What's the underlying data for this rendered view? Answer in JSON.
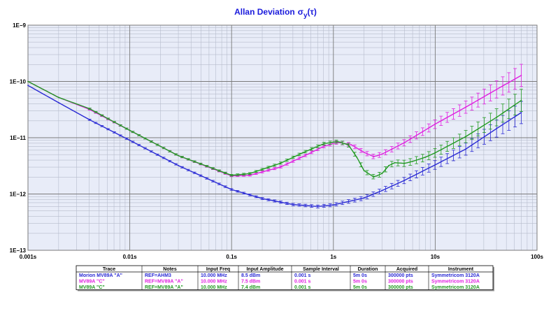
{
  "chart_data": {
    "type": "line",
    "title": "Allan Deviation",
    "title_symbol": "σ",
    "title_subscript": "y",
    "title_arg": "(τ)",
    "x_scale": "log",
    "y_scale": "log",
    "xlim": [
      0.001,
      100
    ],
    "ylim": [
      1e-13,
      1e-09
    ],
    "x_ticks": [
      {
        "value": 0.001,
        "label": "0.001s"
      },
      {
        "value": 0.01,
        "label": "0.01s"
      },
      {
        "value": 0.1,
        "label": "0.1s"
      },
      {
        "value": 1,
        "label": "1s"
      },
      {
        "value": 10,
        "label": "10s"
      },
      {
        "value": 100,
        "label": "100s"
      }
    ],
    "y_ticks": [
      {
        "value": 1e-13,
        "label": "1E−13"
      },
      {
        "value": 1e-12,
        "label": "1E−12"
      },
      {
        "value": 1e-11,
        "label": "1E−11"
      },
      {
        "value": 1e-10,
        "label": "1E−10"
      },
      {
        "value": 1e-09,
        "label": "1E−9"
      }
    ],
    "grid": true,
    "plot_background": "#e8ecf8",
    "error_bars": true,
    "series": [
      {
        "name": "Morion MV89A \"A\"",
        "color": "#2a2ad4",
        "tau": [
          0.001,
          0.002,
          0.004,
          0.01,
          0.03,
          0.1,
          0.2,
          0.4,
          0.7,
          1,
          2,
          3,
          5,
          10,
          20,
          40,
          70
        ],
        "adev": [
          8.5e-11,
          4.2e-11,
          2.1e-11,
          9e-12,
          3.2e-12,
          1.2e-12,
          8.3e-13,
          6.5e-13,
          6e-13,
          6.4e-13,
          8.5e-13,
          1.15e-12,
          1.75e-12,
          3.3e-12,
          6.3e-12,
          1.45e-11,
          2.8e-11
        ]
      },
      {
        "name": "MV89A \"C\"",
        "color": "#e020e0",
        "tau": [
          0.001,
          0.002,
          0.004,
          0.01,
          0.03,
          0.1,
          0.15,
          0.3,
          0.5,
          0.8,
          1.1,
          1.5,
          2,
          2.5,
          3,
          5,
          10,
          20,
          40,
          70
        ],
        "adev": [
          1e-10,
          5.2e-11,
          3.2e-11,
          1.35e-11,
          4.8e-12,
          2.1e-12,
          2.15e-12,
          3e-12,
          4.6e-12,
          7e-12,
          8.3e-12,
          7.5e-12,
          5.5e-12,
          4.6e-12,
          5.1e-12,
          8.2e-12,
          1.75e-11,
          3.5e-11,
          7.2e-11,
          1.28e-10
        ]
      },
      {
        "name": "MV89A \"C\"",
        "color": "#229a22",
        "tau": [
          0.001,
          0.002,
          0.004,
          0.01,
          0.03,
          0.1,
          0.15,
          0.3,
          0.5,
          0.8,
          1.1,
          1.4,
          1.7,
          2,
          2.5,
          3,
          3.5,
          4,
          5,
          6,
          8,
          10,
          20,
          40,
          70
        ],
        "adev": [
          1e-10,
          5.2e-11,
          3.3e-11,
          1.35e-11,
          4.8e-12,
          2.15e-12,
          2.3e-12,
          3.5e-12,
          5.4e-12,
          7.8e-12,
          8.6e-12,
          7.5e-12,
          4.5e-12,
          2.6e-12,
          2e-12,
          2.3e-12,
          3.2e-12,
          3.6e-12,
          3.5e-12,
          3.8e-12,
          4.5e-12,
          5.4e-12,
          1.05e-11,
          2.3e-11,
          4.6e-11
        ]
      }
    ]
  },
  "table": {
    "headers": [
      "Trace",
      "Notes",
      "Input Freq",
      "Input Amplitude",
      "Sample Interval",
      "Duration",
      "Acquired",
      "Instrument"
    ],
    "rows": [
      {
        "color": "#2a2ad4",
        "cells": [
          "Morion MV89A \"A\"",
          "REF=AHM3",
          "10.000 MHz",
          "8.5 dBm",
          "0.001 s",
          "5m 0s",
          "300000 pts",
          "Symmetricom 3120A"
        ]
      },
      {
        "color": "#e020e0",
        "cells": [
          "MV89A \"C\"",
          "REF=MV89A \"A\"",
          "10.000 MHz",
          "7.5 dBm",
          "0.001 s",
          "5m 0s",
          "300000 pts",
          "Symmetricom 3120A"
        ]
      },
      {
        "color": "#229a22",
        "cells": [
          "MV89A \"C\"",
          "REF=MV89A \"A\"",
          "10.000 MHz",
          "7.4 dBm",
          "0.001 s",
          "5m 0s",
          "300000 pts",
          "Symmetricom 3120A"
        ]
      }
    ]
  }
}
